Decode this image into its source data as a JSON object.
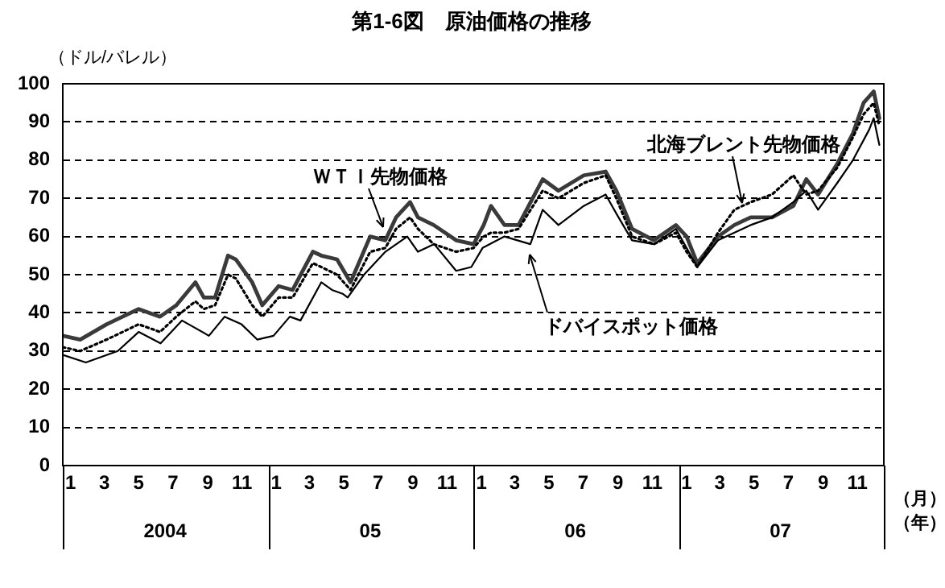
{
  "chart_data": {
    "type": "line",
    "title": "第1-6図　原油価格の推移",
    "ylabel": "（ドル/バレル）",
    "xlabel": "（月）",
    "annotations": [
      "2004",
      "05",
      "06",
      "07",
      "（年）"
    ],
    "xlim": [
      "2004-01-01",
      "2008-01-01"
    ],
    "xticks": [
      {
        "value": "2004-01-15",
        "label": "1"
      },
      {
        "value": "2004-03-15",
        "label": "3"
      },
      {
        "value": "2004-05-15",
        "label": "5"
      },
      {
        "value": "2004-07-15",
        "label": "7"
      },
      {
        "value": "2004-09-15",
        "label": "9"
      },
      {
        "value": "2004-11-15",
        "label": "11"
      },
      {
        "value": "2005-01-15",
        "label": "1"
      },
      {
        "value": "2005-03-15",
        "label": "3"
      },
      {
        "value": "2005-05-15",
        "label": "5"
      },
      {
        "value": "2005-07-15",
        "label": "7"
      },
      {
        "value": "2005-09-15",
        "label": "9"
      },
      {
        "value": "2005-11-15",
        "label": "11"
      },
      {
        "value": "2006-01-15",
        "label": "1"
      },
      {
        "value": "2006-03-15",
        "label": "3"
      },
      {
        "value": "2006-05-15",
        "label": "5"
      },
      {
        "value": "2006-07-15",
        "label": "7"
      },
      {
        "value": "2006-09-15",
        "label": "9"
      },
      {
        "value": "2006-11-15",
        "label": "11"
      },
      {
        "value": "2007-01-15",
        "label": "1"
      },
      {
        "value": "2007-03-15",
        "label": "3"
      },
      {
        "value": "2007-05-15",
        "label": "5"
      },
      {
        "value": "2007-07-15",
        "label": "7"
      },
      {
        "value": "2007-09-15",
        "label": "9"
      },
      {
        "value": "2007-11-15",
        "label": "11"
      }
    ],
    "ylim": [
      0,
      100
    ],
    "yticks": [
      0,
      10,
      20,
      30,
      40,
      50,
      60,
      70,
      80,
      90,
      100
    ],
    "grid": "y",
    "legend": false,
    "marker": "none",
    "series": [
      {
        "name": "ＷＴＩ先物価格",
        "color": "#3a3a3a",
        "line_style": "solid",
        "x": [
          "2004-01-01",
          "2004-02-01",
          "2004-03-19",
          "2004-05-15",
          "2004-06-22",
          "2004-07-21",
          "2004-08-24",
          "2004-09-08",
          "2004-09-28",
          "2004-10-21",
          "2004-11-04",
          "2004-12-03",
          "2004-12-21",
          "2005-01-19",
          "2005-02-13",
          "2005-03-21",
          "2005-04-05",
          "2005-05-03",
          "2005-05-27",
          "2005-07-01",
          "2005-07-28",
          "2005-08-16",
          "2005-09-10",
          "2005-09-24",
          "2005-10-22",
          "2005-12-01",
          "2006-01-01",
          "2006-01-19",
          "2006-02-01",
          "2006-02-25",
          "2006-03-22",
          "2006-05-04",
          "2006-06-01",
          "2006-07-16",
          "2006-08-24",
          "2006-09-12",
          "2006-10-10",
          "2006-11-18",
          "2006-12-27",
          "2007-01-15",
          "2007-02-03",
          "2007-03-12",
          "2007-04-10",
          "2007-05-09",
          "2007-06-16",
          "2007-07-24",
          "2007-08-16",
          "2007-09-06",
          "2007-10-10",
          "2007-11-07",
          "2007-11-26",
          "2007-12-14",
          "2007-12-24"
        ],
        "values": [
          34,
          33,
          37,
          41,
          39,
          42,
          48,
          44,
          44,
          55,
          54,
          48,
          42,
          47,
          46,
          56,
          55,
          54,
          48,
          60,
          59,
          65,
          69,
          65,
          63,
          59,
          58,
          63,
          68,
          63,
          63,
          75,
          72,
          76,
          77,
          72,
          62,
          59,
          63,
          60,
          53,
          60,
          63,
          65,
          65,
          68,
          75,
          71,
          79,
          87,
          95,
          98,
          91
        ]
      },
      {
        "name": "北海ブレント先物価格",
        "color": "#000000",
        "line_style": "dotted",
        "x": [
          "2004-01-01",
          "2004-02-01",
          "2004-03-19",
          "2004-05-15",
          "2004-06-22",
          "2004-07-21",
          "2004-08-24",
          "2004-09-08",
          "2004-09-28",
          "2004-10-21",
          "2004-11-04",
          "2004-12-03",
          "2004-12-21",
          "2005-01-19",
          "2005-02-13",
          "2005-03-21",
          "2005-04-05",
          "2005-05-03",
          "2005-05-27",
          "2005-07-01",
          "2005-07-28",
          "2005-08-16",
          "2005-09-10",
          "2005-09-24",
          "2005-10-22",
          "2005-12-01",
          "2006-01-01",
          "2006-01-19",
          "2006-02-01",
          "2006-02-25",
          "2006-03-22",
          "2006-05-04",
          "2006-06-01",
          "2006-07-16",
          "2006-08-24",
          "2006-09-12",
          "2006-10-10",
          "2006-11-18",
          "2006-12-27",
          "2007-01-15",
          "2007-02-03",
          "2007-03-12",
          "2007-04-10",
          "2007-05-09",
          "2007-06-16",
          "2007-07-24",
          "2007-08-16",
          "2007-09-06",
          "2007-10-10",
          "2007-11-07",
          "2007-11-26",
          "2007-12-14",
          "2007-12-24"
        ],
        "values": [
          31,
          30,
          33,
          37,
          35,
          39,
          43,
          41,
          42,
          50,
          49,
          42,
          39,
          44,
          44,
          53,
          52,
          50,
          46,
          56,
          57,
          62,
          65,
          62,
          58,
          56,
          57,
          60,
          61,
          61,
          62,
          72,
          70,
          74,
          76,
          70,
          60,
          58,
          61,
          56,
          52,
          61,
          67,
          69,
          71,
          76,
          71,
          72,
          78,
          86,
          92,
          95,
          89
        ]
      },
      {
        "name": "ドバイスポット価格",
        "color": "#000000",
        "line_style": "solid",
        "x": [
          "2004-01-01",
          "2004-02-11",
          "2004-04-08",
          "2004-05-15",
          "2004-06-23",
          "2004-07-31",
          "2004-09-17",
          "2004-10-15",
          "2004-11-14",
          "2004-12-12",
          "2005-01-10",
          "2005-02-08",
          "2005-02-27",
          "2005-04-05",
          "2005-04-24",
          "2005-05-13",
          "2005-05-22",
          "2005-06-20",
          "2005-07-28",
          "2005-09-05",
          "2005-09-24",
          "2005-10-23",
          "2005-12-01",
          "2005-12-28",
          "2006-01-17",
          "2006-02-25",
          "2006-04-12",
          "2006-05-04",
          "2006-06-01",
          "2006-07-16",
          "2006-08-24",
          "2006-09-12",
          "2006-10-10",
          "2006-11-18",
          "2006-12-27",
          "2007-02-03",
          "2007-03-12",
          "2007-05-09",
          "2007-06-16",
          "2007-07-24",
          "2007-08-16",
          "2007-09-06",
          "2007-10-10",
          "2007-11-07",
          "2007-12-06",
          "2007-12-14",
          "2007-12-24"
        ],
        "values": [
          29,
          27,
          30,
          35,
          32,
          38,
          34,
          39,
          37,
          33,
          34,
          39,
          38,
          48,
          46,
          45,
          44,
          50,
          56,
          60,
          56,
          58,
          51,
          52,
          57,
          60,
          58,
          67,
          63,
          68,
          71,
          66,
          59,
          58,
          62,
          52,
          59,
          63,
          65,
          69,
          72,
          67,
          74,
          80,
          88,
          91,
          84
        ]
      }
    ]
  }
}
